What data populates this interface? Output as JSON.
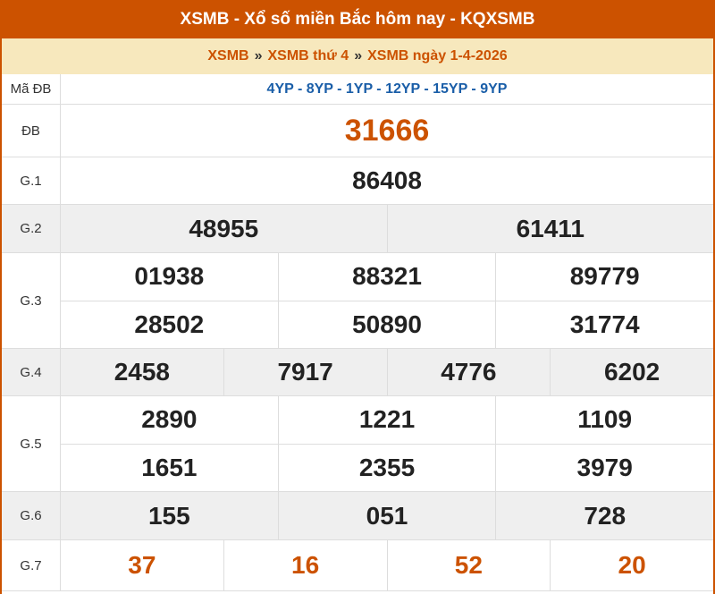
{
  "header": {
    "title": "XSMB - Xổ số miền Bắc hôm nay - KQXSMB"
  },
  "breadcrumb": [
    {
      "label": "XSMB"
    },
    {
      "label": "XSMB thứ 4"
    },
    {
      "label": "XSMB ngày 1-4-2026"
    }
  ],
  "breadcrumb_separator": "»",
  "colors": {
    "brand": "#cc5200",
    "subheader_bg": "#f7e8bd",
    "code_blue": "#1a5ea8"
  },
  "results": {
    "ma_db": {
      "label": "Mã ĐB",
      "value": "4YP - 8YP - 1YP - 12YP - 15YP - 9YP"
    },
    "db": {
      "label": "ĐB",
      "value": "31666"
    },
    "g1": {
      "label": "G.1",
      "values": [
        "86408"
      ]
    },
    "g2": {
      "label": "G.2",
      "values": [
        "48955",
        "61411"
      ]
    },
    "g3": {
      "label": "G.3",
      "values": [
        "01938",
        "88321",
        "89779",
        "28502",
        "50890",
        "31774"
      ]
    },
    "g4": {
      "label": "G.4",
      "values": [
        "2458",
        "7917",
        "4776",
        "6202"
      ]
    },
    "g5": {
      "label": "G.5",
      "values": [
        "2890",
        "1221",
        "1109",
        "1651",
        "2355",
        "3979"
      ]
    },
    "g6": {
      "label": "G.6",
      "values": [
        "155",
        "051",
        "728"
      ]
    },
    "g7": {
      "label": "G.7",
      "values": [
        "37",
        "16",
        "52",
        "20"
      ]
    }
  }
}
